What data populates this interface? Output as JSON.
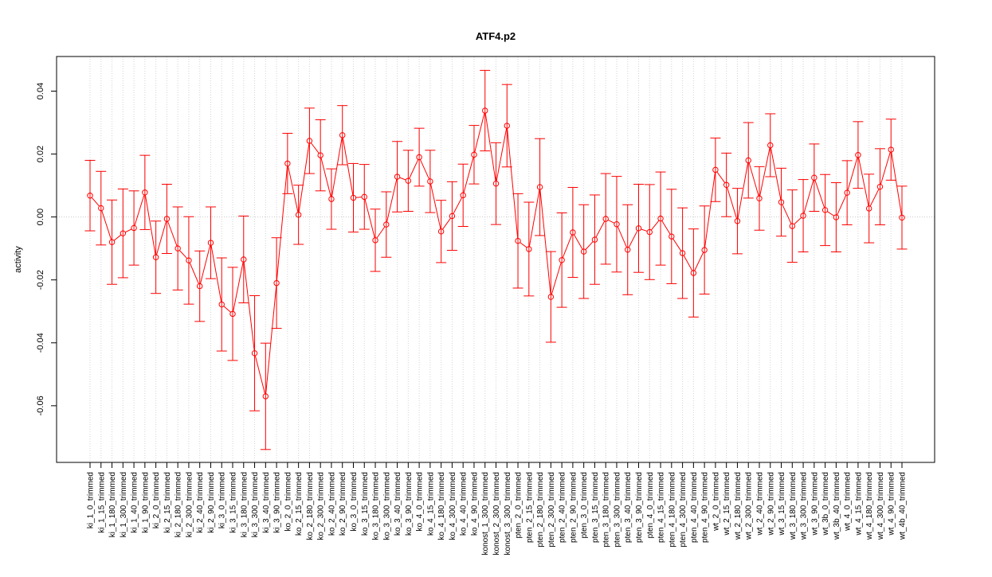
{
  "chart_data": {
    "type": "line",
    "title": "ATF4.p2",
    "xlabel": "",
    "ylabel": "activity",
    "ylim": [
      -0.078,
      0.051
    ],
    "yticks": [
      -0.06,
      -0.04,
      -0.02,
      0.0,
      0.02,
      0.04
    ],
    "ytick_labels": [
      "-0.06",
      "-0.04",
      "-0.02",
      "0.00",
      "0.02",
      "0.04"
    ],
    "grid": "vertical dotted gridlines at each category; dotted horizontal reference line at 0",
    "error_bars": true,
    "color": "#ff0000",
    "categories": [
      "ki_1_0_trimmed",
      "ki_1_15_trimmed",
      "ki_1_180_trimmed",
      "ki_1_300_trimmed",
      "ki_1_40_trimmed",
      "ki_1_90_trimmed",
      "ki_2_0_trimmed",
      "ki_2_15_trimmed",
      "ki_2_180_trimmed",
      "ki_2_300_trimmed",
      "ki_2_40_trimmed",
      "ki_2_90_trimmed",
      "ki_3_0_trimmed",
      "ki_3_15_trimmed",
      "ki_3_180_trimmed",
      "ki_3_300_trimmed",
      "ki_3_40_trimmed",
      "ki_3_90_trimmed",
      "ko_2_0_trimmed",
      "ko_2_15_trimmed",
      "ko_2_180_trimmed",
      "ko_2_300_trimmed",
      "ko_2_40_trimmed",
      "ko_2_90_trimmed",
      "ko_3_0_trimmed",
      "ko_3_15_trimmed",
      "ko_3_180_trimmed",
      "ko_3_300_trimmed",
      "ko_3_40_trimmed",
      "ko_3_90_trimmed",
      "ko_4_0_trimmed",
      "ko_4_15_trimmed",
      "ko_4_180_trimmed",
      "ko_4_300_trimmed",
      "ko_4_40_trimmed",
      "ko_4_90_trimmed",
      "konost_1_300_trimmed",
      "konost_2_300_trimmed",
      "konost_3_300_trimmed",
      "pten_2_0_trimmed",
      "pten_2_15_trimmed",
      "pten_2_180_trimmed",
      "pten_2_300_trimmed",
      "pten_2_40_trimmed",
      "pten_2_90_trimmed",
      "pten_3_0_trimmed",
      "pten_3_15_trimmed",
      "pten_3_180_trimmed",
      "pten_3_300_trimmed",
      "pten_3_40_trimmed",
      "pten_3_90_trimmed",
      "pten_4_0_trimmed",
      "pten_4_15_trimmed",
      "pten_4_180_trimmed",
      "pten_4_300_trimmed",
      "pten_4_40_trimmed",
      "pten_4_90_trimmed",
      "wt_2_0_trimmed",
      "wt_2_15_trimmed",
      "wt_2_180_trimmed",
      "wt_2_300_trimmed",
      "wt_2_40_trimmed",
      "wt_2_90_trimmed",
      "wt_3_15_trimmed",
      "wt_3_180_trimmed",
      "wt_3_300_trimmed",
      "wt_3_90_trimmed",
      "wt_3b_0_trimmed",
      "wt_3b_40_trimmed",
      "wt_4_0_trimmed",
      "wt_4_15_trimmed",
      "wt_4_180_trimmed",
      "wt_4_300_trimmed",
      "wt_4_90_trimmed",
      "wt_4b_40_trimmed"
    ],
    "series": [
      {
        "values": [
          0.0068,
          0.0028,
          -0.008,
          -0.0052,
          -0.0035,
          0.0078,
          -0.0128,
          -0.0006,
          -0.01,
          -0.0138,
          -0.022,
          -0.0082,
          -0.0278,
          -0.0308,
          -0.0135,
          -0.0433,
          -0.057,
          -0.021,
          0.017,
          0.0007,
          0.0242,
          0.0196,
          0.0057,
          0.026,
          0.0061,
          0.0064,
          -0.0074,
          -0.0024,
          0.0128,
          0.0115,
          0.019,
          0.0113,
          -0.0046,
          0.0003,
          0.0069,
          0.0198,
          0.0338,
          0.0106,
          0.029,
          -0.0076,
          -0.0102,
          0.0095,
          -0.0254,
          -0.0137,
          -0.0049,
          -0.011,
          -0.0072,
          -0.0006,
          -0.0023,
          -0.0104,
          -0.0036,
          -0.0048,
          -0.0005,
          -0.0062,
          -0.0115,
          -0.0178,
          -0.0105,
          0.015,
          0.0102,
          -0.0013,
          0.018,
          0.0059,
          0.0228,
          0.0047,
          -0.0029,
          0.0004,
          0.0125,
          0.0022,
          -0.0001,
          0.0077,
          0.0197,
          0.0027,
          0.0096,
          0.0214,
          -0.0002
        ],
        "errors": [
          0.0112,
          0.0117,
          0.0134,
          0.0141,
          0.0118,
          0.0118,
          0.0115,
          0.011,
          0.0132,
          0.0139,
          0.0112,
          0.0114,
          0.0148,
          0.0148,
          0.0138,
          0.0183,
          0.0169,
          0.0144,
          0.0096,
          0.0094,
          0.0104,
          0.0113,
          0.0096,
          0.0094,
          0.0109,
          0.0103,
          0.0099,
          0.0104,
          0.0112,
          0.0097,
          0.0092,
          0.0099,
          0.0099,
          0.0109,
          0.0099,
          0.0093,
          0.0128,
          0.013,
          0.0131,
          0.015,
          0.0149,
          0.0154,
          0.0144,
          0.015,
          0.0143,
          0.0149,
          0.0142,
          0.0144,
          0.0152,
          0.0143,
          0.014,
          0.0151,
          0.0148,
          0.015,
          0.0144,
          0.014,
          0.014,
          0.0101,
          0.0101,
          0.0104,
          0.012,
          0.0101,
          0.01,
          0.0108,
          0.0115,
          0.0115,
          0.0107,
          0.0113,
          0.011,
          0.0102,
          0.0106,
          0.0109,
          0.0121,
          0.0097,
          0.01
        ]
      }
    ]
  }
}
